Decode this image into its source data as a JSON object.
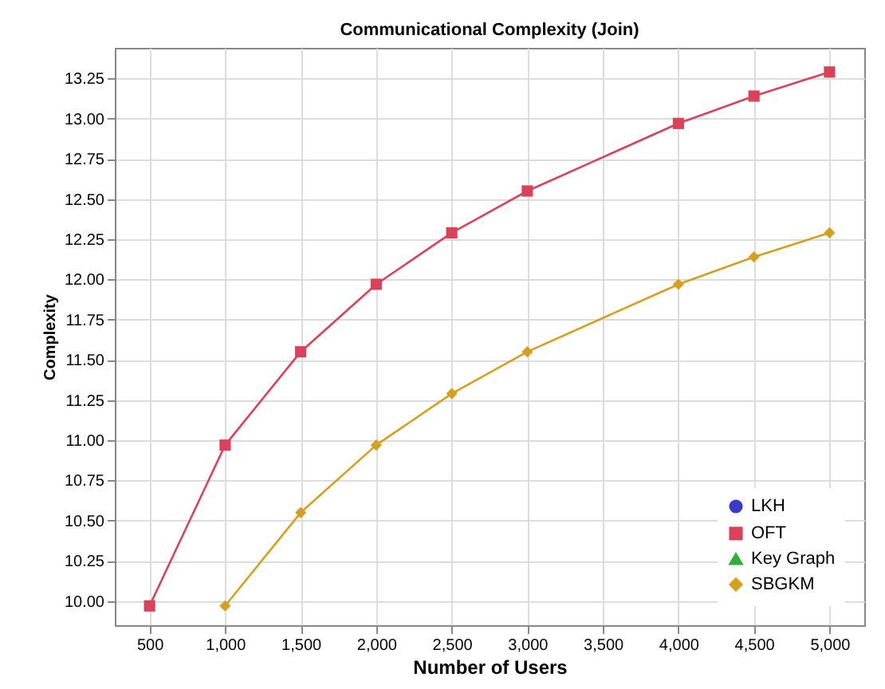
{
  "chart_data": {
    "type": "line",
    "title": "Communicational Complexity (Join)",
    "xlabel": "Number of Users",
    "ylabel": "Complexity",
    "x": [
      500,
      1000,
      1500,
      2000,
      2500,
      3000,
      4000,
      4500,
      5000
    ],
    "series": [
      {
        "name": "LKH",
        "color": "#3a3acc",
        "marker": "circle",
        "values": [
          null,
          null,
          null,
          null,
          null,
          null,
          null,
          null,
          null
        ]
      },
      {
        "name": "OFT",
        "color": "#d9435a",
        "marker": "square",
        "values": [
          9.97,
          10.97,
          11.55,
          11.97,
          12.29,
          12.55,
          12.97,
          13.14,
          13.29
        ]
      },
      {
        "name": "Key Graph",
        "color": "#2fae3a",
        "marker": "triangle",
        "values": [
          null,
          null,
          null,
          null,
          null,
          null,
          null,
          null,
          null
        ]
      },
      {
        "name": "SBGKM",
        "color": "#d4a020",
        "marker": "diamond",
        "values": [
          null,
          9.97,
          10.55,
          10.97,
          11.29,
          11.55,
          11.97,
          12.14,
          12.29
        ]
      }
    ],
    "xlim": [
      270,
      5230
    ],
    "xticks": [
      500,
      {
        "value": 1000,
        "label": "1,000"
      },
      {
        "value": 1500,
        "label": "1,500"
      },
      {
        "value": 2000,
        "label": "2,000"
      },
      {
        "value": 2500,
        "label": "2,500"
      },
      {
        "value": 3000,
        "label": "3,000"
      },
      {
        "value": 3500,
        "label": "3,500"
      },
      {
        "value": 4000,
        "label": "4,000"
      },
      {
        "value": 4500,
        "label": "4,500"
      },
      {
        "value": 5000,
        "label": "5,000"
      }
    ],
    "ylim": [
      9.85,
      13.44
    ],
    "yticks": [
      {
        "value": 10,
        "label": "10.00"
      },
      {
        "value": 10.25,
        "label": "10.25"
      },
      {
        "value": 10.5,
        "label": "10.50"
      },
      {
        "value": 10.75,
        "label": "10.75"
      },
      {
        "value": 11,
        "label": "11.00"
      },
      {
        "value": 11.25,
        "label": "11.25"
      },
      {
        "value": 11.5,
        "label": "11.50"
      },
      {
        "value": 11.75,
        "label": "11.75"
      },
      {
        "value": 12,
        "label": "12.00"
      },
      {
        "value": 12.25,
        "label": "12.25"
      },
      {
        "value": 12.5,
        "label": "12.50"
      },
      {
        "value": 12.75,
        "label": "12.75"
      },
      {
        "value": 13,
        "label": "13.00"
      },
      {
        "value": 13.25,
        "label": "13.25"
      }
    ],
    "grid": true,
    "legend": "bottom right",
    "line_style": "solid"
  }
}
